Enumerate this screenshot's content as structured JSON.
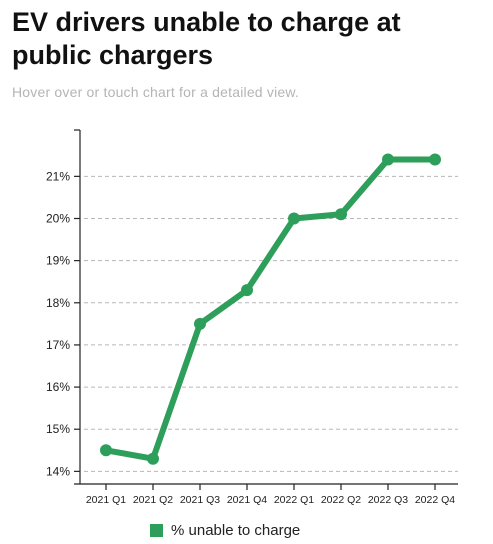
{
  "title": "EV drivers unable to charge at public chargers",
  "subtitle": "Hover over or touch chart for a detailed view.",
  "colors": {
    "line": "#2e9e5b",
    "grid": "#b8b8b8",
    "axis": "#222222"
  },
  "chart_data": {
    "type": "line",
    "categories": [
      "2021 Q1",
      "2021 Q2",
      "2021 Q3",
      "2021 Q4",
      "2022 Q1",
      "2022 Q2",
      "2022 Q3",
      "2022 Q4"
    ],
    "series": [
      {
        "name": "% unable to charge",
        "values": [
          14.5,
          14.3,
          17.5,
          18.3,
          20.0,
          20.1,
          21.4,
          21.4
        ]
      }
    ],
    "yticks": [
      "14%",
      "15%",
      "16%",
      "17%",
      "18%",
      "19%",
      "20%",
      "21%"
    ],
    "ylim": [
      13.7,
      22.1
    ],
    "grid": true,
    "legend": "bottom"
  }
}
